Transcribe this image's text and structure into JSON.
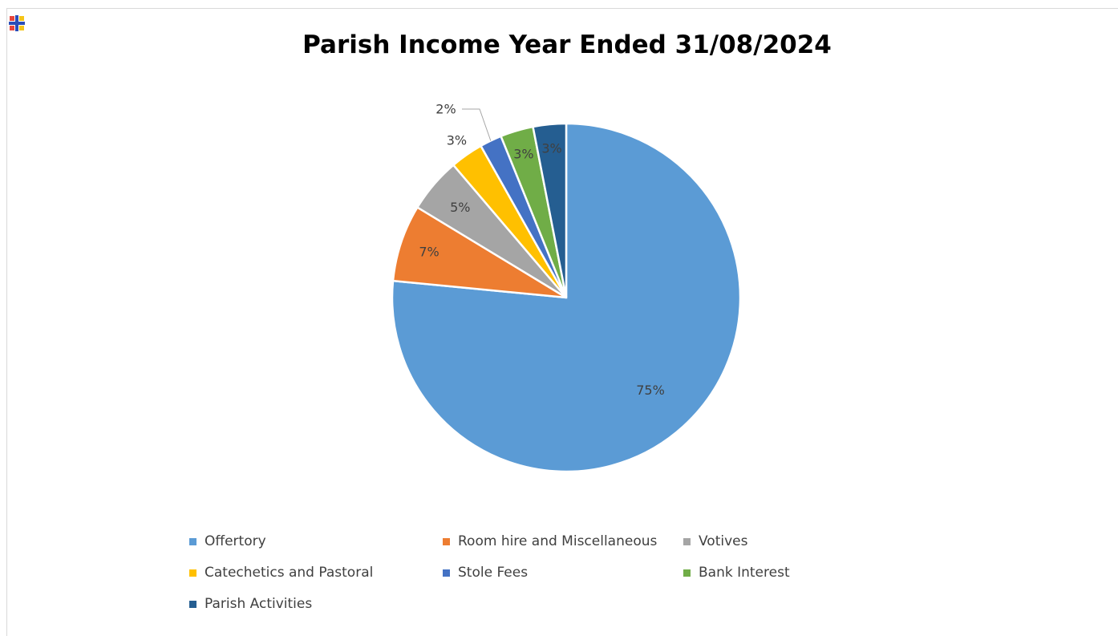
{
  "chart_data": {
    "type": "pie",
    "title": "Parish Income Year Ended 31/08/2024",
    "slices": [
      {
        "name": "Offertory",
        "value": 75,
        "label": "75%",
        "color": "#5B9BD5"
      },
      {
        "name": "Room hire and Miscellaneous",
        "value": 7,
        "label": "7%",
        "color": "#ED7D31"
      },
      {
        "name": "Votives",
        "value": 5,
        "label": "5%",
        "color": "#A5A5A5"
      },
      {
        "name": "Catechetics and Pastoral",
        "value": 3,
        "label": "3%",
        "color": "#FFC000"
      },
      {
        "name": "Stole Fees",
        "value": 2,
        "label": "2%",
        "color": "#4472C4"
      },
      {
        "name": "Bank Interest",
        "value": 3,
        "label": "3%",
        "color": "#70AD47"
      },
      {
        "name": "Parish Activities",
        "value": 3,
        "label": "3%",
        "color": "#255E91"
      }
    ],
    "start_angle": "12 o'clock, clockwise",
    "legend_position": "bottom"
  }
}
